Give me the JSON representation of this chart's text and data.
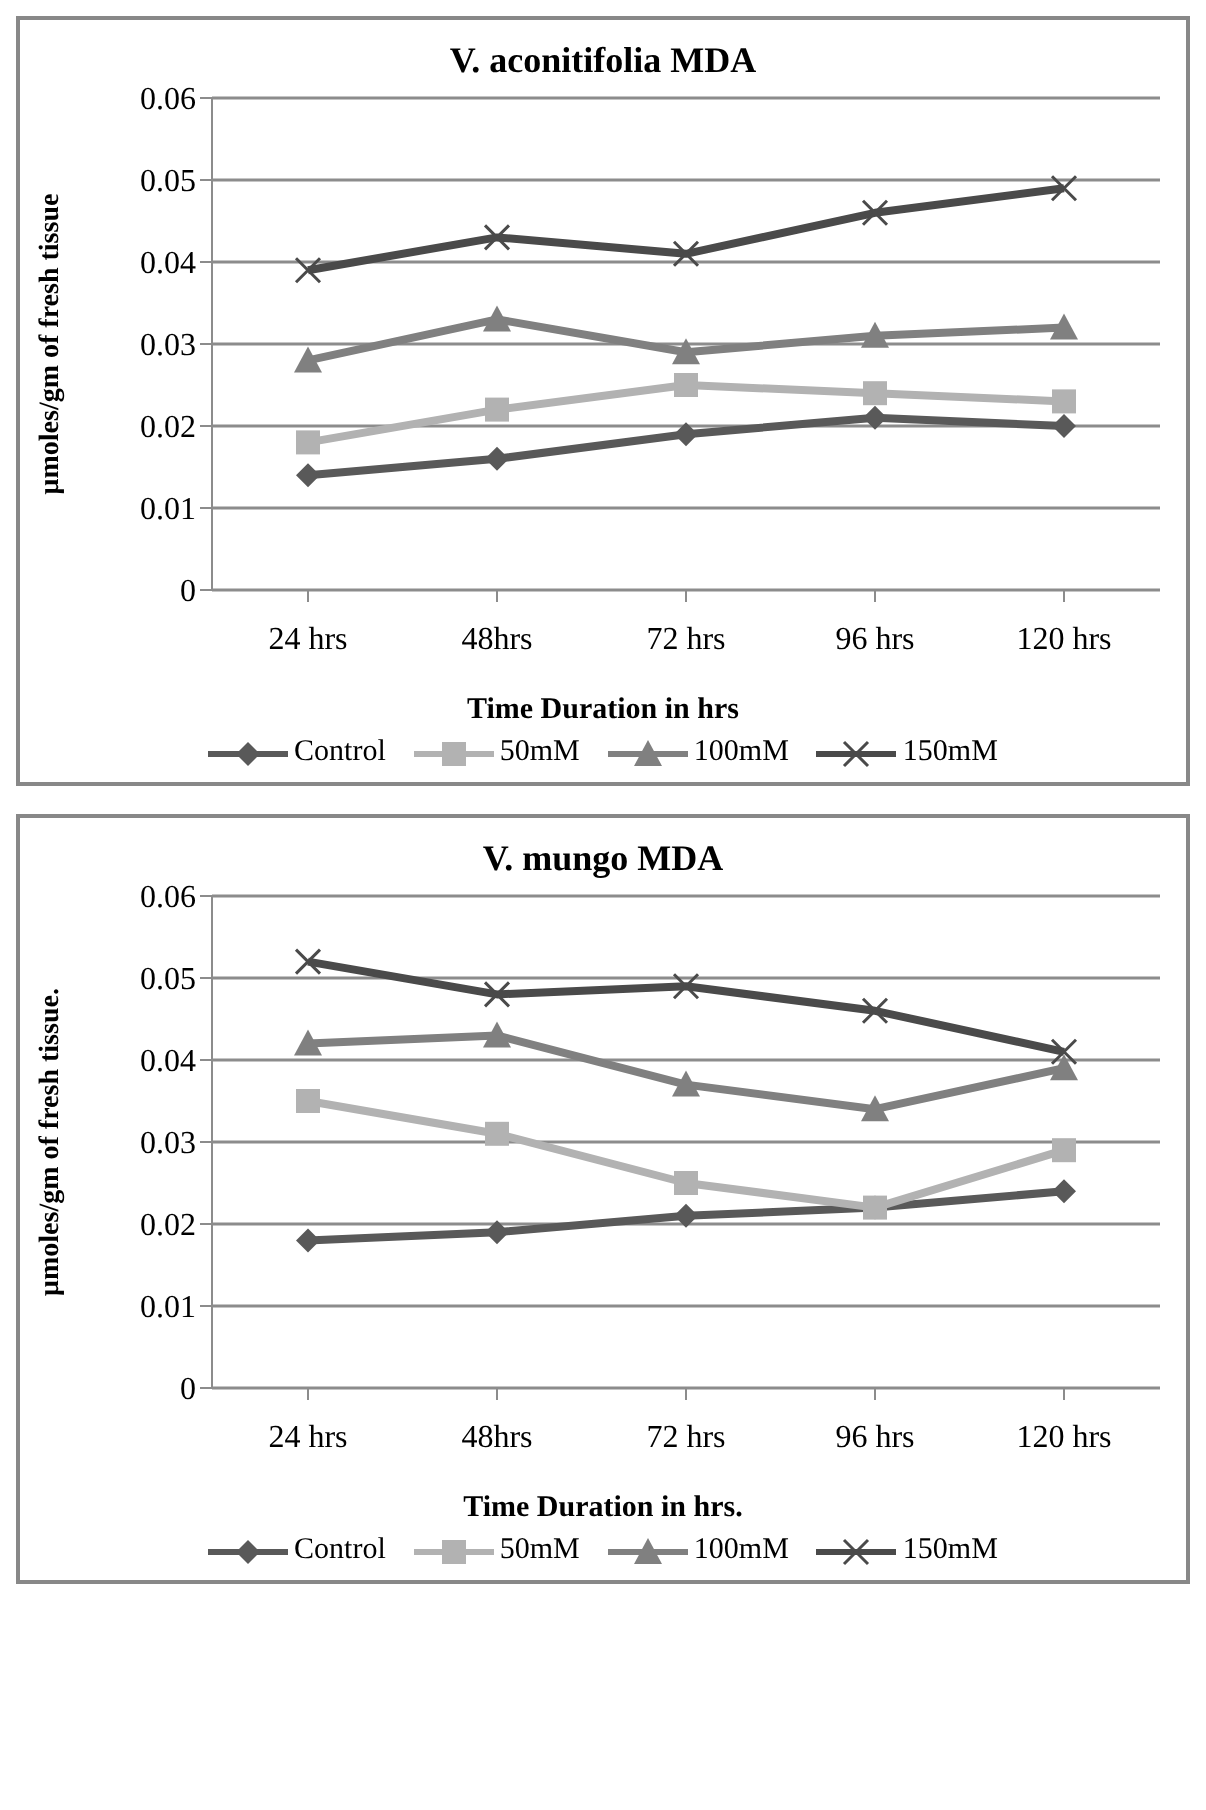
{
  "chart_data": [
    {
      "type": "line",
      "title": "V. aconitifolia MDA",
      "xlabel": "Time Duration in hrs",
      "ylabel": "μmoles/gm of fresh tissue",
      "categories": [
        "24 hrs",
        "48hrs",
        "72 hrs",
        "96 hrs",
        "120 hrs"
      ],
      "ylim": [
        0,
        0.06
      ],
      "yticks": [
        0,
        0.01,
        0.02,
        0.03,
        0.04,
        0.05,
        0.06
      ],
      "grid": "y",
      "legend": "bottom",
      "series": [
        {
          "name": "Control",
          "color": "#595959",
          "marker": "diamond",
          "values": [
            0.014,
            0.016,
            0.019,
            0.021,
            0.02
          ]
        },
        {
          "name": "50mM",
          "color": "#b2b2b2",
          "marker": "square",
          "values": [
            0.018,
            0.022,
            0.025,
            0.024,
            0.023
          ]
        },
        {
          "name": "100mM",
          "color": "#808080",
          "marker": "triangle",
          "values": [
            0.028,
            0.033,
            0.029,
            0.031,
            0.032
          ]
        },
        {
          "name": "150mM",
          "color": "#4a4a4a",
          "marker": "cross",
          "values": [
            0.039,
            0.043,
            0.041,
            0.046,
            0.049
          ]
        }
      ]
    },
    {
      "type": "line",
      "title": "V. mungo MDA",
      "xlabel": "Time Duration in hrs.",
      "ylabel": "μmoles/gm of fresh tissue.",
      "categories": [
        "24 hrs",
        "48hrs",
        "72 hrs",
        "96 hrs",
        "120 hrs"
      ],
      "ylim": [
        0,
        0.06
      ],
      "yticks": [
        0,
        0.01,
        0.02,
        0.03,
        0.04,
        0.05,
        0.06
      ],
      "grid": "y",
      "legend": "bottom",
      "series": [
        {
          "name": "Control",
          "color": "#595959",
          "marker": "diamond",
          "values": [
            0.018,
            0.019,
            0.021,
            0.022,
            0.024
          ]
        },
        {
          "name": "50mM",
          "color": "#b2b2b2",
          "marker": "square",
          "values": [
            0.035,
            0.031,
            0.025,
            0.022,
            0.029
          ]
        },
        {
          "name": "100mM",
          "color": "#808080",
          "marker": "triangle",
          "values": [
            0.042,
            0.043,
            0.037,
            0.034,
            0.039
          ]
        },
        {
          "name": "150mM",
          "color": "#4a4a4a",
          "marker": "cross",
          "values": [
            0.052,
            0.048,
            0.049,
            0.046,
            0.041
          ]
        }
      ]
    }
  ]
}
